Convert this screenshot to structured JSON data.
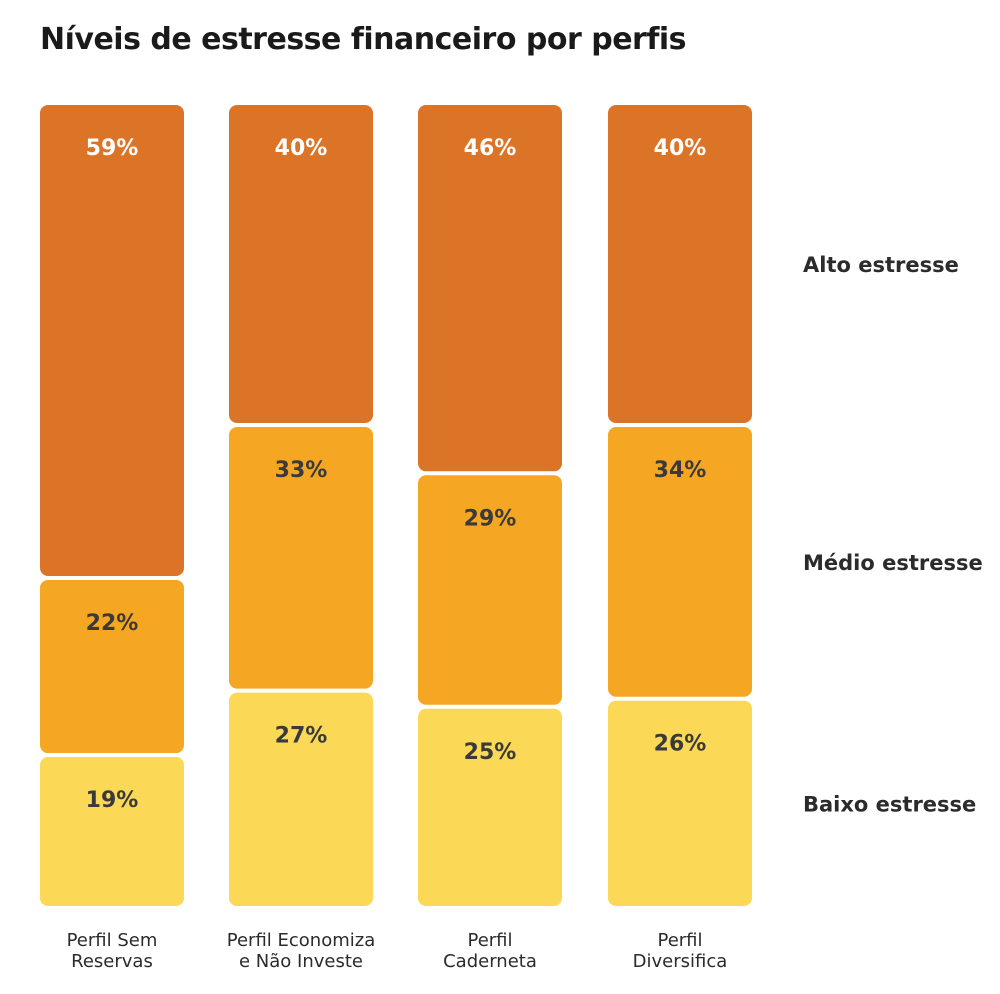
{
  "chart_data": {
    "type": "bar",
    "stacked": true,
    "title": "Níveis de estresse financeiro por perfis",
    "categories": [
      [
        "Perfil Sem",
        "Reservas"
      ],
      [
        "Perfil Economiza",
        "e Não Investe"
      ],
      [
        "Perfil",
        "Caderneta"
      ],
      [
        "Perfil",
        "Diversifica"
      ]
    ],
    "series": [
      {
        "name": "Alto estresse",
        "values": [
          59,
          40,
          46,
          40
        ],
        "color": "#DC7428",
        "text_color": "#ffffff"
      },
      {
        "name": "Médio estresse",
        "values": [
          22,
          33,
          29,
          34
        ],
        "color": "#F5A623",
        "text_color": "#3a3a3a"
      },
      {
        "name": "Baixo estresse",
        "values": [
          19,
          27,
          25,
          26
        ],
        "color": "#FBD956",
        "text_color": "#3a3a3a"
      }
    ],
    "value_suffix": "%",
    "legend_position": "right"
  }
}
